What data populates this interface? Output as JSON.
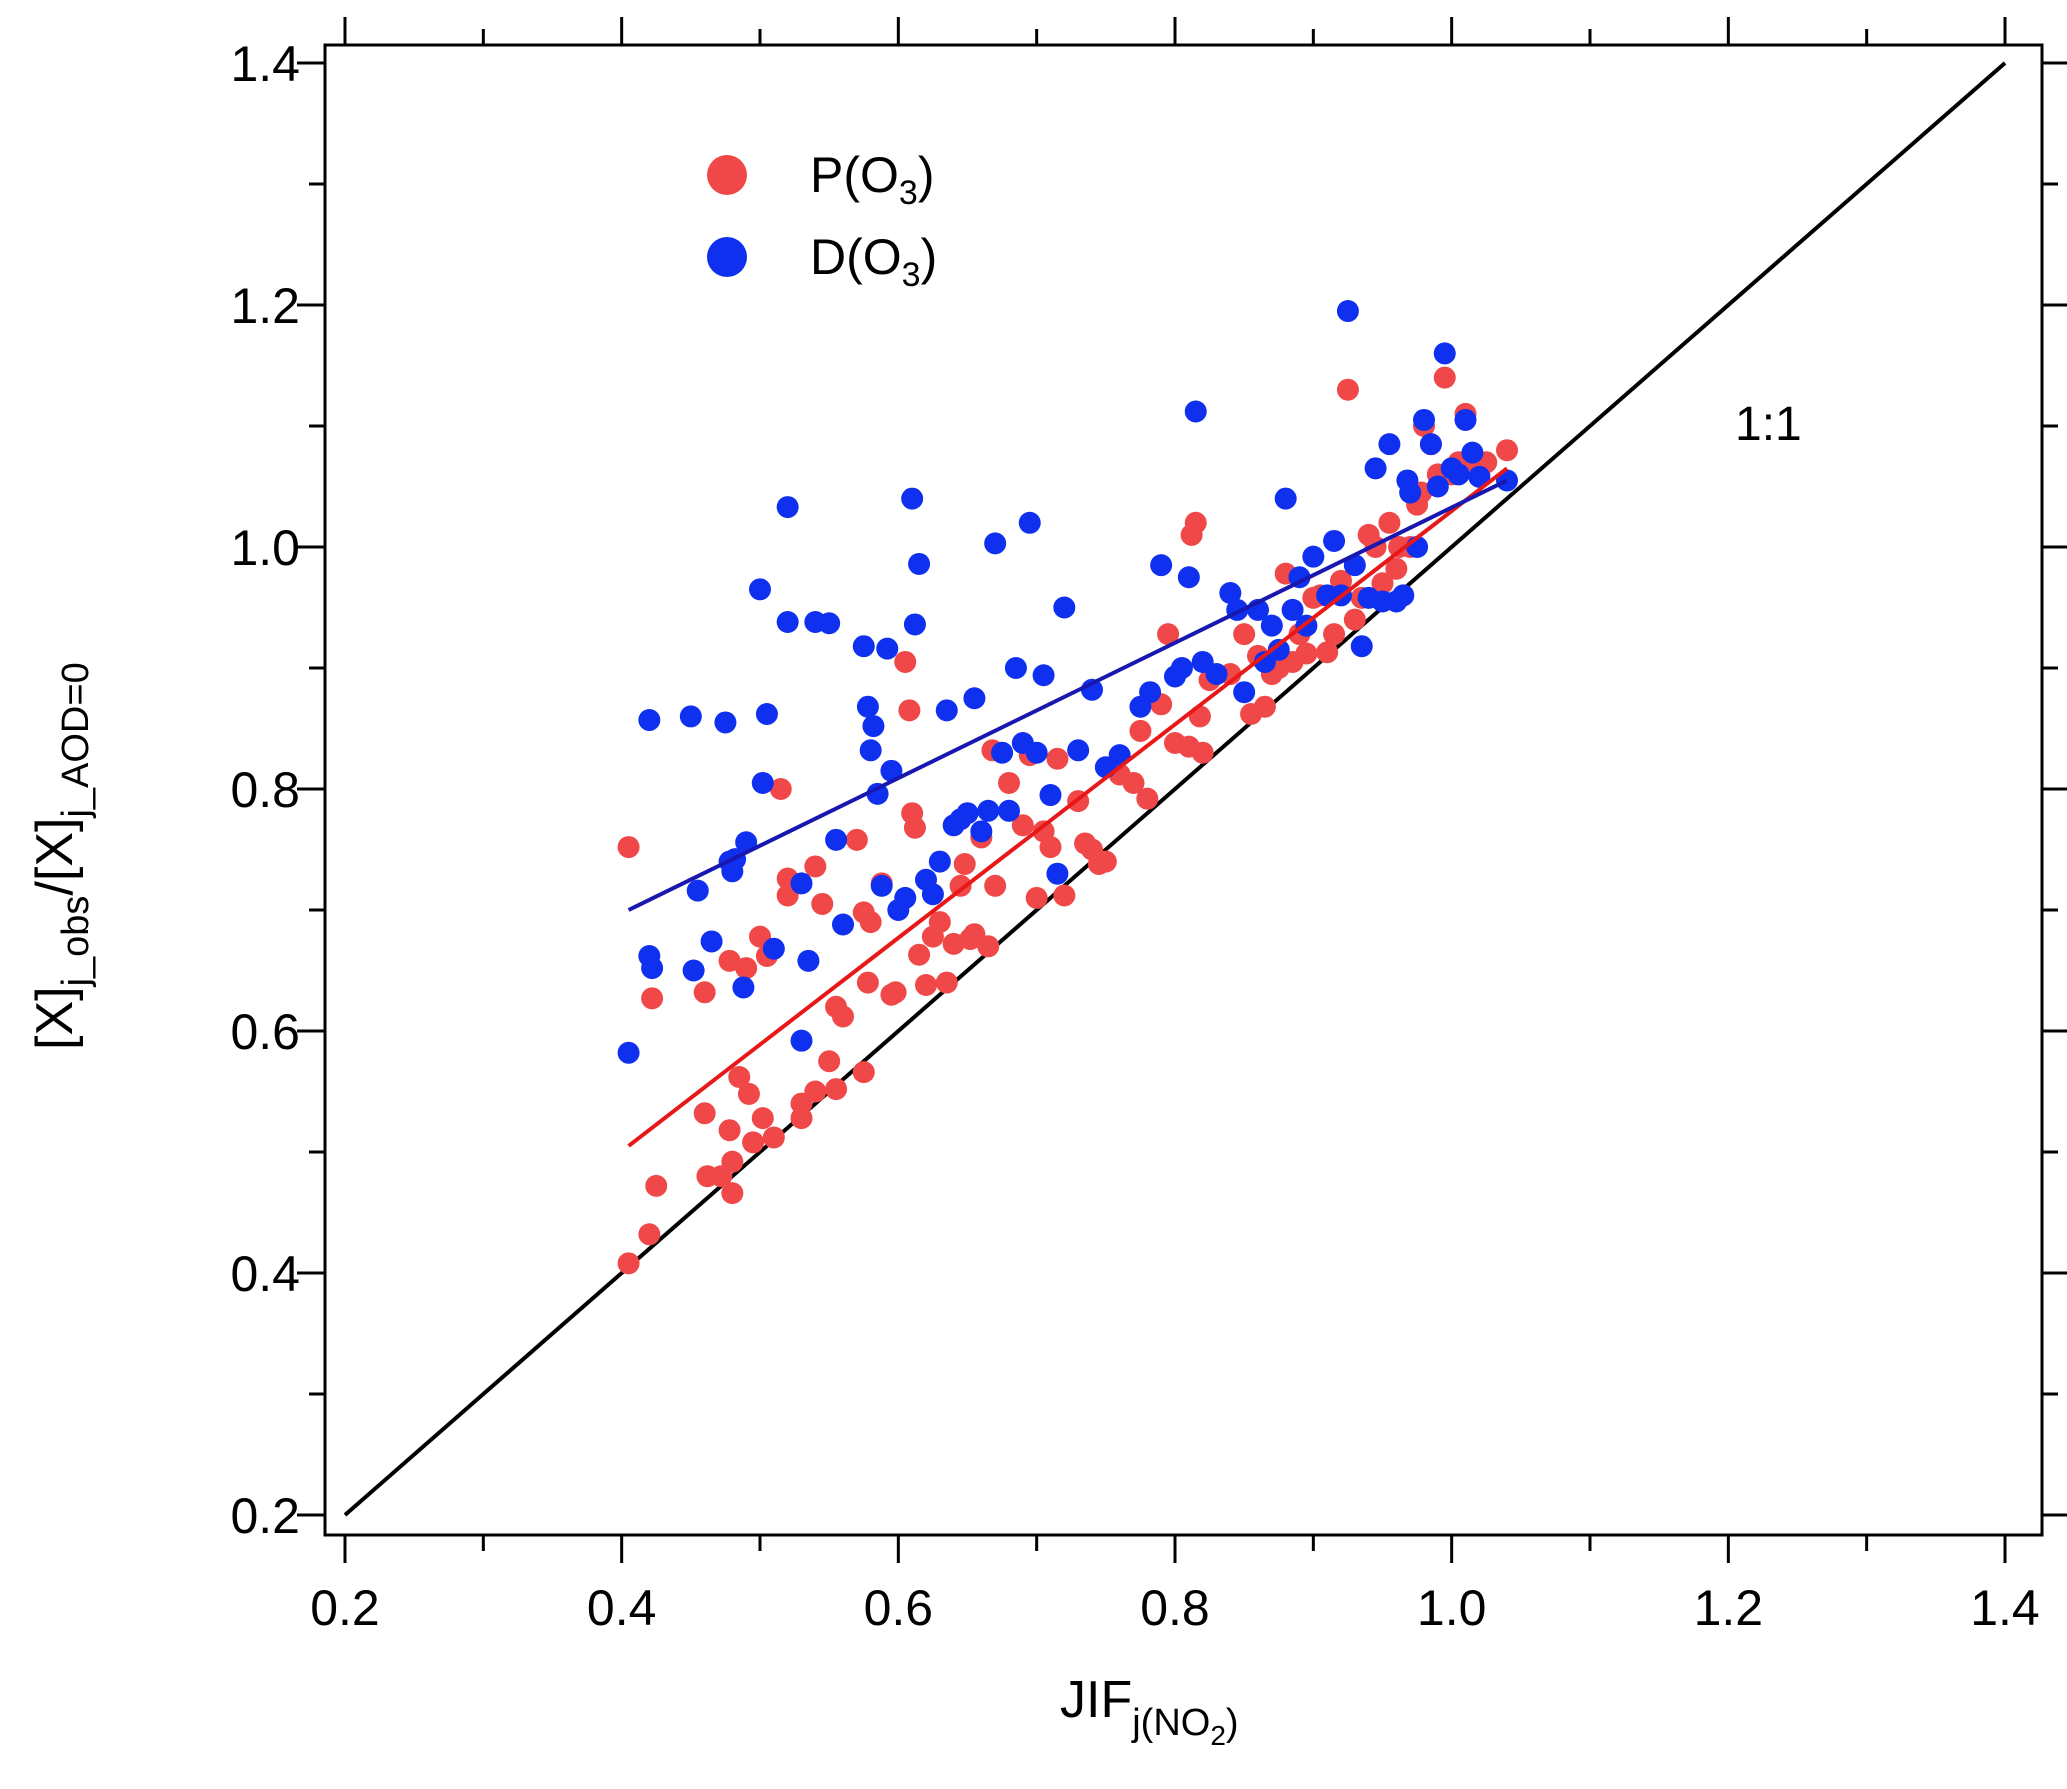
{
  "chart_data": {
    "type": "scatter",
    "xlabel": {
      "main": "JIF",
      "sub_pre": "j(NO",
      "sub_sub": "2",
      "sub_post": ")"
    },
    "ylabel": {
      "p1": "[X]",
      "s1": "j_obs",
      "p2": "/[X]",
      "s2": "j_AOD=0"
    },
    "xlim": [
      0.2,
      1.4
    ],
    "ylim": [
      0.2,
      1.4
    ],
    "xticks": [
      "0.2",
      "0.4",
      "0.6",
      "0.8",
      "1.0",
      "1.2",
      "1.4"
    ],
    "yticks": [
      "0.2",
      "0.4",
      "0.6",
      "0.8",
      "1.0",
      "1.2",
      "1.4"
    ],
    "grid": false,
    "legend_position": "top-left",
    "annotation": "1:1",
    "identity_line": {
      "from": [
        0.2,
        0.2
      ],
      "to": [
        1.4,
        1.4
      ],
      "color": "#000000"
    },
    "series": [
      {
        "name": "P(O",
        "name_sub": "3",
        "name_post": ")",
        "color": "#f04848",
        "fit": {
          "from": [
            0.405,
            0.505
          ],
          "to": [
            1.04,
            1.065
          ],
          "color": "#e81818"
        },
        "points": [
          [
            0.405,
            0.752
          ],
          [
            0.405,
            0.408
          ],
          [
            0.42,
            0.432
          ],
          [
            0.422,
            0.627
          ],
          [
            0.425,
            0.472
          ],
          [
            0.46,
            0.532
          ],
          [
            0.46,
            0.632
          ],
          [
            0.462,
            0.48
          ],
          [
            0.472,
            0.48
          ],
          [
            0.478,
            0.658
          ],
          [
            0.478,
            0.518
          ],
          [
            0.48,
            0.492
          ],
          [
            0.48,
            0.466
          ],
          [
            0.485,
            0.562
          ],
          [
            0.49,
            0.652
          ],
          [
            0.492,
            0.548
          ],
          [
            0.495,
            0.508
          ],
          [
            0.5,
            0.678
          ],
          [
            0.502,
            0.528
          ],
          [
            0.505,
            0.662
          ],
          [
            0.51,
            0.512
          ],
          [
            0.515,
            0.8
          ],
          [
            0.52,
            0.726
          ],
          [
            0.52,
            0.712
          ],
          [
            0.53,
            0.528
          ],
          [
            0.53,
            0.54
          ],
          [
            0.54,
            0.736
          ],
          [
            0.54,
            0.55
          ],
          [
            0.545,
            0.705
          ],
          [
            0.55,
            0.575
          ],
          [
            0.555,
            0.62
          ],
          [
            0.555,
            0.552
          ],
          [
            0.56,
            0.612
          ],
          [
            0.57,
            0.758
          ],
          [
            0.575,
            0.698
          ],
          [
            0.575,
            0.566
          ],
          [
            0.578,
            0.64
          ],
          [
            0.58,
            0.69
          ],
          [
            0.588,
            0.722
          ],
          [
            0.595,
            0.63
          ],
          [
            0.598,
            0.632
          ],
          [
            0.605,
            0.905
          ],
          [
            0.608,
            0.865
          ],
          [
            0.61,
            0.78
          ],
          [
            0.612,
            0.768
          ],
          [
            0.615,
            0.663
          ],
          [
            0.62,
            0.638
          ],
          [
            0.625,
            0.678
          ],
          [
            0.63,
            0.69
          ],
          [
            0.635,
            0.64
          ],
          [
            0.64,
            0.672
          ],
          [
            0.645,
            0.72
          ],
          [
            0.648,
            0.738
          ],
          [
            0.652,
            0.676
          ],
          [
            0.655,
            0.68
          ],
          [
            0.66,
            0.76
          ],
          [
            0.665,
            0.67
          ],
          [
            0.668,
            0.832
          ],
          [
            0.67,
            0.72
          ],
          [
            0.68,
            0.805
          ],
          [
            0.69,
            0.77
          ],
          [
            0.695,
            0.828
          ],
          [
            0.7,
            0.71
          ],
          [
            0.705,
            0.765
          ],
          [
            0.71,
            0.752
          ],
          [
            0.715,
            0.825
          ],
          [
            0.72,
            0.712
          ],
          [
            0.73,
            0.79
          ],
          [
            0.735,
            0.755
          ],
          [
            0.74,
            0.75
          ],
          [
            0.745,
            0.738
          ],
          [
            0.75,
            0.74
          ],
          [
            0.76,
            0.812
          ],
          [
            0.77,
            0.805
          ],
          [
            0.775,
            0.848
          ],
          [
            0.78,
            0.792
          ],
          [
            0.79,
            0.87
          ],
          [
            0.795,
            0.928
          ],
          [
            0.8,
            0.838
          ],
          [
            0.81,
            0.835
          ],
          [
            0.812,
            1.01
          ],
          [
            0.815,
            1.02
          ],
          [
            0.818,
            0.86
          ],
          [
            0.82,
            0.83
          ],
          [
            0.825,
            0.89
          ],
          [
            0.84,
            0.895
          ],
          [
            0.85,
            0.928
          ],
          [
            0.855,
            0.862
          ],
          [
            0.86,
            0.91
          ],
          [
            0.865,
            0.868
          ],
          [
            0.87,
            0.895
          ],
          [
            0.875,
            0.9
          ],
          [
            0.88,
            0.978
          ],
          [
            0.885,
            0.905
          ],
          [
            0.89,
            0.928
          ],
          [
            0.895,
            0.912
          ],
          [
            0.9,
            0.958
          ],
          [
            0.905,
            0.96
          ],
          [
            0.91,
            0.913
          ],
          [
            0.915,
            0.928
          ],
          [
            0.92,
            0.972
          ],
          [
            0.925,
            1.13
          ],
          [
            0.93,
            0.94
          ],
          [
            0.935,
            0.958
          ],
          [
            0.94,
            1.01
          ],
          [
            0.945,
            1.0
          ],
          [
            0.95,
            0.97
          ],
          [
            0.955,
            1.02
          ],
          [
            0.96,
            0.982
          ],
          [
            0.962,
            1.0
          ],
          [
            0.965,
            0.96
          ],
          [
            0.97,
            1.0
          ],
          [
            0.975,
            1.035
          ],
          [
            0.978,
            1.045
          ],
          [
            0.98,
            1.1
          ],
          [
            0.985,
            1.085
          ],
          [
            0.99,
            1.06
          ],
          [
            0.995,
            1.14
          ],
          [
            1.0,
            1.06
          ],
          [
            1.005,
            1.07
          ],
          [
            1.01,
            1.11
          ],
          [
            1.015,
            1.065
          ],
          [
            1.02,
            1.06
          ],
          [
            1.025,
            1.07
          ],
          [
            1.04,
            1.08
          ]
        ]
      },
      {
        "name": "D(O",
        "name_sub": "3",
        "name_post": ")",
        "color": "#1030f0",
        "fit": {
          "from": [
            0.405,
            0.7
          ],
          "to": [
            1.04,
            1.055
          ],
          "color": "#1818b0"
        },
        "points": [
          [
            0.405,
            0.582
          ],
          [
            0.42,
            0.857
          ],
          [
            0.42,
            0.662
          ],
          [
            0.422,
            0.652
          ],
          [
            0.45,
            0.86
          ],
          [
            0.452,
            0.65
          ],
          [
            0.455,
            0.716
          ],
          [
            0.465,
            0.674
          ],
          [
            0.475,
            0.855
          ],
          [
            0.478,
            0.74
          ],
          [
            0.48,
            0.732
          ],
          [
            0.482,
            0.742
          ],
          [
            0.488,
            0.636
          ],
          [
            0.49,
            0.756
          ],
          [
            0.5,
            0.965
          ],
          [
            0.502,
            0.805
          ],
          [
            0.505,
            0.862
          ],
          [
            0.51,
            0.668
          ],
          [
            0.52,
            1.033
          ],
          [
            0.52,
            0.938
          ],
          [
            0.53,
            0.722
          ],
          [
            0.53,
            0.592
          ],
          [
            0.535,
            0.658
          ],
          [
            0.54,
            0.938
          ],
          [
            0.55,
            0.937
          ],
          [
            0.555,
            0.758
          ],
          [
            0.56,
            0.688
          ],
          [
            0.575,
            0.918
          ],
          [
            0.578,
            0.868
          ],
          [
            0.58,
            0.832
          ],
          [
            0.582,
            0.852
          ],
          [
            0.585,
            0.796
          ],
          [
            0.588,
            0.72
          ],
          [
            0.592,
            0.916
          ],
          [
            0.595,
            0.815
          ],
          [
            0.6,
            0.7
          ],
          [
            0.605,
            0.71
          ],
          [
            0.61,
            1.04
          ],
          [
            0.612,
            0.936
          ],
          [
            0.615,
            0.986
          ],
          [
            0.62,
            0.725
          ],
          [
            0.625,
            0.713
          ],
          [
            0.63,
            0.74
          ],
          [
            0.635,
            0.865
          ],
          [
            0.64,
            0.77
          ],
          [
            0.645,
            0.775
          ],
          [
            0.65,
            0.78
          ],
          [
            0.655,
            0.875
          ],
          [
            0.66,
            0.765
          ],
          [
            0.665,
            0.782
          ],
          [
            0.67,
            1.003
          ],
          [
            0.675,
            0.83
          ],
          [
            0.68,
            0.782
          ],
          [
            0.685,
            0.9
          ],
          [
            0.69,
            0.838
          ],
          [
            0.695,
            1.02
          ],
          [
            0.7,
            0.83
          ],
          [
            0.705,
            0.894
          ],
          [
            0.71,
            0.795
          ],
          [
            0.715,
            0.73
          ],
          [
            0.72,
            0.95
          ],
          [
            0.73,
            0.832
          ],
          [
            0.74,
            0.882
          ],
          [
            0.75,
            0.818
          ],
          [
            0.76,
            0.828
          ],
          [
            0.775,
            0.868
          ],
          [
            0.782,
            0.88
          ],
          [
            0.79,
            0.985
          ],
          [
            0.8,
            0.893
          ],
          [
            0.805,
            0.9
          ],
          [
            0.81,
            0.975
          ],
          [
            0.815,
            1.112
          ],
          [
            0.82,
            0.905
          ],
          [
            0.83,
            0.895
          ],
          [
            0.84,
            0.962
          ],
          [
            0.845,
            0.948
          ],
          [
            0.85,
            0.88
          ],
          [
            0.86,
            0.948
          ],
          [
            0.865,
            0.905
          ],
          [
            0.87,
            0.935
          ],
          [
            0.875,
            0.915
          ],
          [
            0.88,
            1.04
          ],
          [
            0.885,
            0.948
          ],
          [
            0.89,
            0.975
          ],
          [
            0.895,
            0.935
          ],
          [
            0.9,
            0.992
          ],
          [
            0.91,
            0.96
          ],
          [
            0.915,
            1.005
          ],
          [
            0.92,
            0.96
          ],
          [
            0.925,
            1.195
          ],
          [
            0.93,
            0.985
          ],
          [
            0.935,
            0.918
          ],
          [
            0.94,
            0.958
          ],
          [
            0.945,
            1.065
          ],
          [
            0.95,
            0.955
          ],
          [
            0.955,
            1.085
          ],
          [
            0.96,
            0.955
          ],
          [
            0.965,
            0.96
          ],
          [
            0.968,
            1.055
          ],
          [
            0.97,
            1.045
          ],
          [
            0.975,
            1.0
          ],
          [
            0.98,
            1.105
          ],
          [
            0.985,
            1.085
          ],
          [
            0.99,
            1.05
          ],
          [
            0.995,
            1.16
          ],
          [
            1.0,
            1.065
          ],
          [
            1.005,
            1.06
          ],
          [
            1.01,
            1.105
          ],
          [
            1.015,
            1.078
          ],
          [
            1.02,
            1.058
          ],
          [
            1.04,
            1.055
          ]
        ]
      }
    ]
  }
}
